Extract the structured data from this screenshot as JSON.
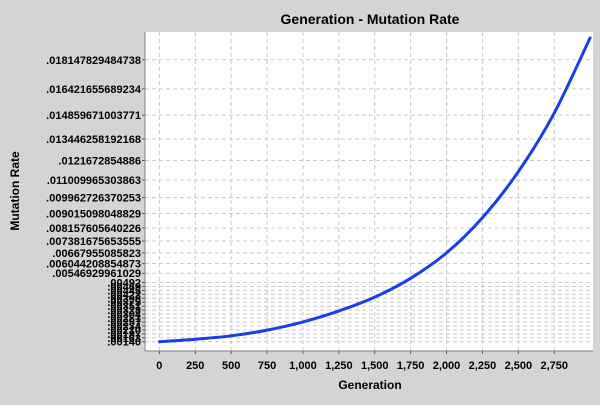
{
  "chart_data": {
    "type": "line",
    "title": "Generation - Mutation Rate",
    "xlabel": "Generation",
    "ylabel": "Mutation Rate",
    "xlim": [
      -100,
      3020
    ],
    "ylim": [
      0.00085,
      0.0198
    ],
    "grid": true,
    "x_ticks": [
      0,
      250,
      500,
      750,
      1000,
      1250,
      1500,
      1750,
      2000,
      2250,
      2500,
      2750
    ],
    "x_tick_labels": [
      "0",
      "250",
      "500",
      "750",
      "1,000",
      "1,250",
      "1,500",
      "1,750",
      "2,000",
      "2,250",
      "2,500",
      "2,750"
    ],
    "y_ticks": [
      0.0014,
      0.00163,
      0.00187,
      0.0021,
      0.00234,
      0.00257,
      0.00281,
      0.00304,
      0.00328,
      0.00351,
      0.00375,
      0.00398,
      0.00422,
      0.00445,
      0.00469,
      0.00492,
      0.00546929961029,
      0.006044208854873,
      0.00667955085823,
      0.007381675653555,
      0.008157605640226,
      0.009015098048829,
      0.009962726370253,
      0.011009965303863,
      0.0121672854886,
      0.013446258192168,
      0.014859671003771,
      0.016421655689234,
      0.018147829484738
    ],
    "y_tick_labels": [
      ".00140",
      ".00163",
      ".00187",
      ".00210",
      ".00234",
      ".00257",
      ".00281",
      ".00304",
      ".00328",
      ".00351",
      ".00375",
      ".00398",
      ".00422",
      ".00445",
      ".00469",
      ".00492",
      ".00546929961029",
      ".006044208854873",
      ".00667955085823",
      ".007381675653555",
      ".008157605640226",
      ".009015098048829",
      ".009962726370253",
      ".011009965303863",
      ".0121672854886",
      ".013446258192168",
      ".014859671003771",
      ".016421655689234",
      ".018147829484738"
    ],
    "series": [
      {
        "color": "#1a3ee8",
        "x": [
          0,
          250,
          500,
          750,
          1000,
          1250,
          1500,
          1750,
          2000,
          2250,
          2500,
          2750,
          3000
        ],
        "y": [
          0.0014,
          0.00155,
          0.00175,
          0.00209,
          0.00258,
          0.00323,
          0.00405,
          0.00517,
          0.00668,
          0.00877,
          0.0115,
          0.01498,
          0.01945
        ]
      }
    ]
  }
}
